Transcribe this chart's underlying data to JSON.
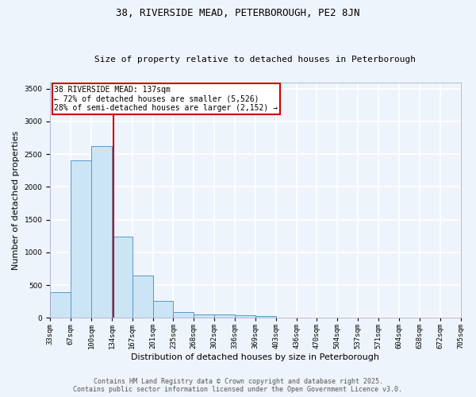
{
  "title_line1": "38, RIVERSIDE MEAD, PETERBOROUGH, PE2 8JN",
  "title_line2": "Size of property relative to detached houses in Peterborough",
  "xlabel": "Distribution of detached houses by size in Peterborough",
  "ylabel": "Number of detached properties",
  "bin_labels": [
    "33sqm",
    "67sqm",
    "100sqm",
    "134sqm",
    "167sqm",
    "201sqm",
    "235sqm",
    "268sqm",
    "302sqm",
    "336sqm",
    "369sqm",
    "403sqm",
    "436sqm",
    "470sqm",
    "504sqm",
    "537sqm",
    "571sqm",
    "604sqm",
    "638sqm",
    "672sqm",
    "705sqm"
  ],
  "bar_values": [
    390,
    2410,
    2620,
    1240,
    640,
    255,
    90,
    55,
    50,
    35,
    25,
    0,
    0,
    0,
    0,
    0,
    0,
    0,
    0,
    0
  ],
  "bar_color": "#cce5f5",
  "bar_edge_color": "#5599cc",
  "property_line_x": 3.09,
  "property_line_color": "#cc0000",
  "annotation_text": "38 RIVERSIDE MEAD: 137sqm\n← 72% of detached houses are smaller (5,526)\n28% of semi-detached houses are larger (2,152) →",
  "annotation_box_color": "#ffffff",
  "annotation_box_edge_color": "#cc0000",
  "ylim": [
    0,
    3600
  ],
  "yticks": [
    0,
    500,
    1000,
    1500,
    2000,
    2500,
    3000,
    3500
  ],
  "footer_line1": "Contains HM Land Registry data © Crown copyright and database right 2025.",
  "footer_line2": "Contains public sector information licensed under the Open Government Licence v3.0.",
  "background_color": "#eef4fb",
  "grid_color": "#ffffff",
  "title_fontsize": 9,
  "subtitle_fontsize": 8,
  "xlabel_fontsize": 8,
  "ylabel_fontsize": 8,
  "tick_fontsize": 6.5,
  "annotation_fontsize": 7,
  "footer_fontsize": 6
}
